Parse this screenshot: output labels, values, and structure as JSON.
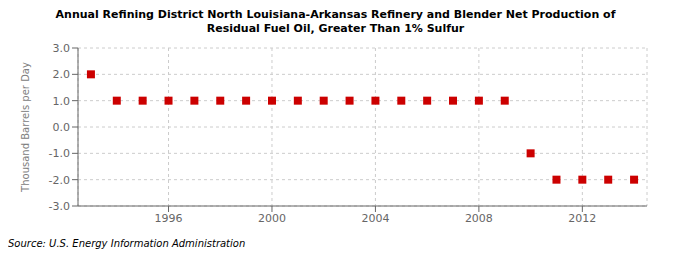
{
  "chart_data": {
    "type": "scatter",
    "title": "Annual Refining District North Louisiana-Arkansas Refinery and Blender Net Production of",
    "subtitle": "Residual Fuel Oil, Greater Than 1% Sulfur",
    "ylabel": "Thousand Barrels per Day",
    "annotations": [
      "Source: U.S. Energy Information Administration"
    ],
    "x": [
      1993,
      1994,
      1995,
      1996,
      1997,
      1998,
      1999,
      2000,
      2001,
      2002,
      2003,
      2004,
      2005,
      2006,
      2007,
      2008,
      2009,
      2010,
      2011,
      2012,
      2013,
      2014
    ],
    "values": [
      2,
      1,
      1,
      1,
      1,
      1,
      1,
      1,
      1,
      1,
      1,
      1,
      1,
      1,
      1,
      1,
      1,
      -1,
      -2,
      -2,
      -2,
      -2
    ],
    "color": "#cc0000",
    "marker": "square",
    "xlim": [
      1992.5,
      2014.5
    ],
    "xticks": [
      1996,
      2000,
      2004,
      2008,
      2012
    ],
    "ylim": [
      -3.0,
      3.0
    ],
    "yticks": [
      {
        "value": -3.0,
        "label": "-3.0"
      },
      {
        "value": -2.0,
        "label": "-2.0"
      },
      {
        "value": -1.0,
        "label": "-1.0"
      },
      {
        "value": 0.0,
        "label": "0.0"
      },
      {
        "value": 1.0,
        "label": "1.0"
      },
      {
        "value": 2.0,
        "label": "2.0"
      },
      {
        "value": 3.0,
        "label": "3.0"
      }
    ],
    "grid": true
  }
}
